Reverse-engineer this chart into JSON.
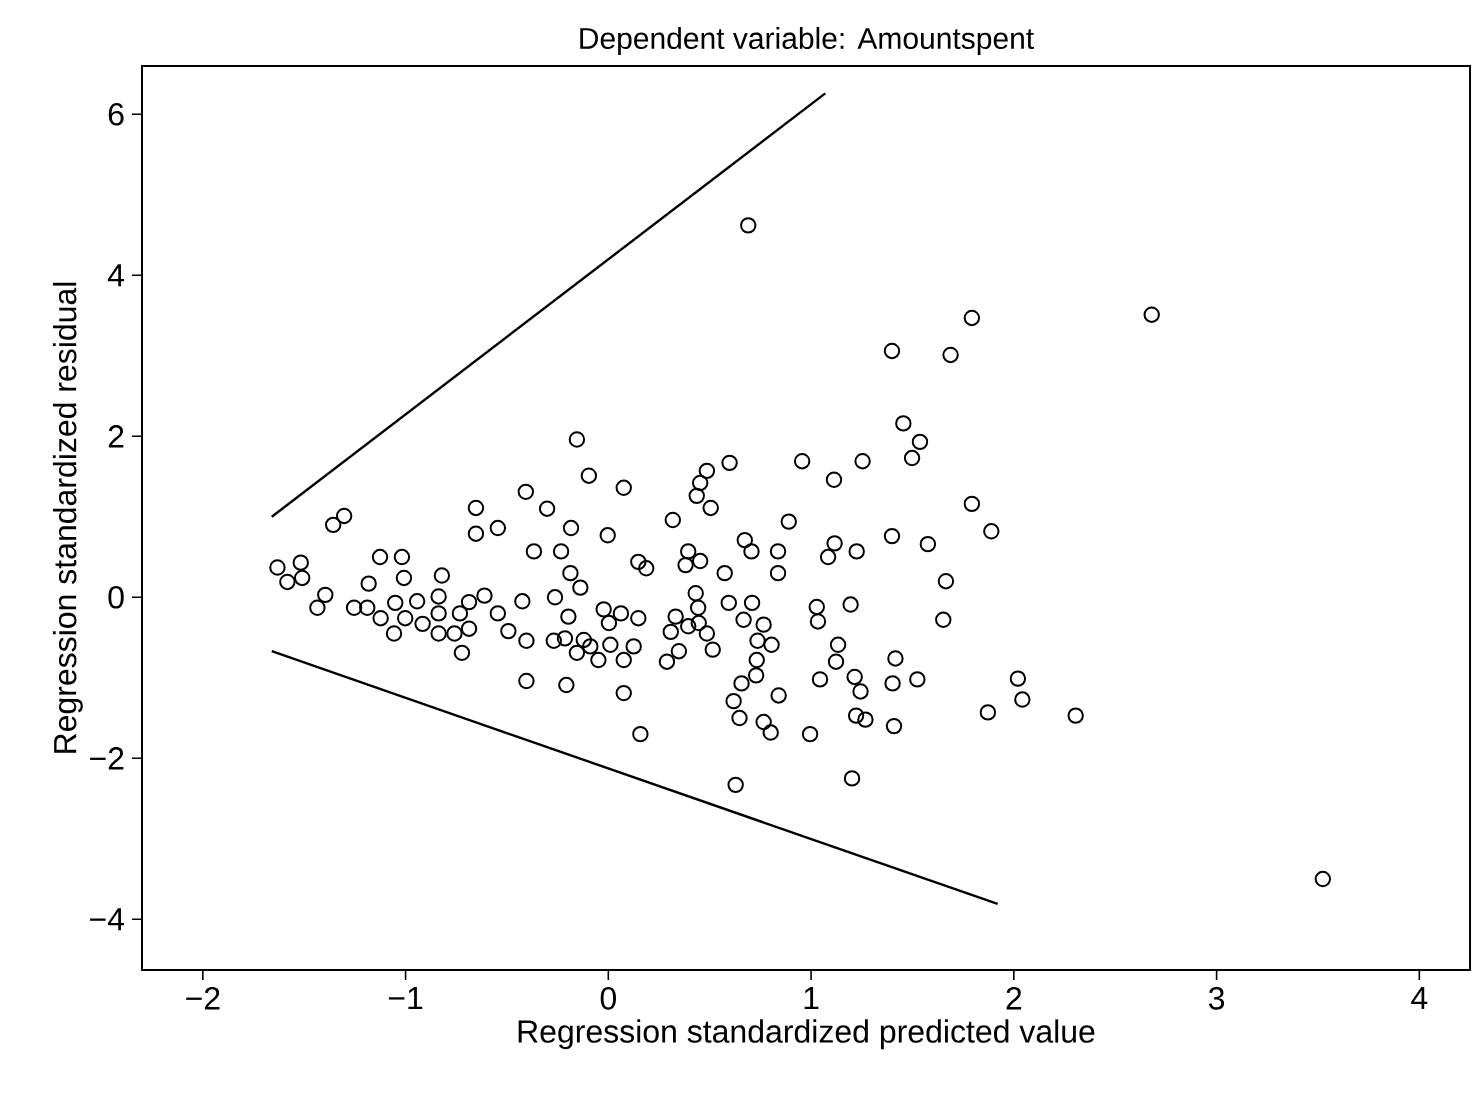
{
  "chart_data": {
    "type": "scatter",
    "title": "Dependent variable: Amountspent",
    "xlabel": "Regression standardized predicted value",
    "ylabel": "Regression standardized residual",
    "xlim": [
      -2.3,
      4.25
    ],
    "ylim": [
      -4.63,
      6.6
    ],
    "xticks": [
      {
        "value": -2,
        "label": "−2"
      },
      {
        "value": -1,
        "label": "−1"
      },
      0,
      1,
      2,
      3,
      4
    ],
    "yticks": [
      {
        "value": -4,
        "label": "−4"
      },
      {
        "value": -2,
        "label": "−2"
      },
      0,
      2,
      4,
      6
    ],
    "series": [
      {
        "color": "#000000",
        "marker": "circle",
        "x": [
          -0.155,
          -0.096,
          0.076,
          -0.407,
          -0.653,
          -0.302,
          -1.303,
          -1.357,
          -0.653,
          -0.545,
          -0.184,
          -0.003,
          -0.367,
          -0.233,
          -1.632,
          -1.517,
          -1.583,
          -1.51,
          -1.126,
          -1.018,
          -1.396,
          -1.435,
          -1.182,
          -1.008,
          -0.821,
          -1.254,
          -1.189,
          -1.123,
          -1.051,
          -1.002,
          -1.057,
          -0.943,
          -0.916,
          -0.837,
          -0.837,
          -0.837,
          -0.759,
          -0.722,
          -0.732,
          -0.687,
          -0.687,
          -0.611,
          -0.545,
          -0.493,
          -0.424,
          -0.404,
          -0.404,
          -0.207,
          -0.263,
          -0.187,
          -0.138,
          -0.197,
          -0.269,
          -0.214,
          -0.155,
          -0.121,
          -0.089,
          -0.049,
          -0.023,
          0.003,
          0.01,
          0.062,
          0.076,
          0.076,
          0.69,
          1.793,
          1.399,
          1.688,
          1.455,
          1.537,
          1.498,
          0.486,
          0.453,
          0.436,
          0.505,
          0.598,
          0.956,
          1.113,
          1.254,
          0.318,
          1.793,
          1.889,
          0.89,
          0.673,
          0.706,
          0.837,
          1.116,
          1.084,
          1.225,
          1.399,
          1.576,
          1.665,
          0.148,
          0.187,
          0.394,
          0.381,
          0.453,
          0.574,
          0.837,
          0.431,
          0.594,
          0.709,
          1.028,
          1.195,
          1.652,
          1.034,
          0.148,
          0.125,
          0.158,
          0.308,
          0.332,
          0.394,
          0.443,
          0.446,
          0.486,
          0.515,
          0.348,
          0.289,
          0.667,
          0.766,
          0.736,
          0.805,
          0.732,
          0.729,
          0.657,
          0.618,
          0.647,
          0.766,
          0.801,
          0.84,
          0.995,
          1.044,
          1.133,
          1.123,
          1.215,
          1.244,
          1.222,
          1.268,
          1.416,
          1.402,
          1.524,
          1.409,
          0.628,
          1.202,
          1.872,
          2.02,
          2.042,
          2.68,
          2.305,
          3.524
        ],
        "values": [
          1.96,
          1.51,
          1.36,
          1.31,
          1.11,
          1.1,
          1.01,
          0.9,
          0.79,
          0.86,
          0.86,
          0.77,
          0.57,
          0.57,
          0.37,
          0.43,
          0.19,
          0.24,
          0.5,
          0.5,
          0.03,
          -0.13,
          0.17,
          0.24,
          0.27,
          -0.13,
          -0.13,
          -0.26,
          -0.07,
          -0.26,
          -0.45,
          -0.05,
          -0.33,
          0.01,
          -0.2,
          -0.45,
          -0.45,
          -0.69,
          -0.2,
          -0.06,
          -0.39,
          0.02,
          -0.2,
          -0.42,
          -0.05,
          -0.54,
          -1.04,
          -1.09,
          0.0,
          0.3,
          0.12,
          -0.24,
          -0.54,
          -0.51,
          -0.69,
          -0.53,
          -0.61,
          -0.78,
          -0.15,
          -0.32,
          -0.59,
          -0.2,
          -0.78,
          -1.19,
          4.62,
          3.47,
          3.06,
          3.01,
          2.16,
          1.93,
          1.73,
          1.57,
          1.42,
          1.26,
          1.11,
          1.67,
          1.69,
          1.46,
          1.69,
          0.96,
          1.16,
          0.82,
          0.94,
          0.71,
          0.57,
          0.57,
          0.67,
          0.5,
          0.57,
          0.76,
          0.66,
          0.2,
          0.44,
          0.36,
          0.57,
          0.4,
          0.45,
          0.3,
          0.3,
          0.05,
          -0.07,
          -0.07,
          -0.12,
          -0.09,
          -0.28,
          -0.3,
          -0.26,
          -0.61,
          -1.7,
          -0.43,
          -0.24,
          -0.36,
          -0.13,
          -0.32,
          -0.45,
          -0.65,
          -0.67,
          -0.8,
          -0.28,
          -0.34,
          -0.54,
          -0.59,
          -0.78,
          -0.97,
          -1.07,
          -1.29,
          -1.5,
          -1.55,
          -1.68,
          -1.22,
          -1.7,
          -1.02,
          -0.59,
          -0.8,
          -0.99,
          -1.17,
          -1.47,
          -1.52,
          -0.76,
          -1.07,
          -1.02,
          -1.6,
          -2.33,
          -2.25,
          -1.43,
          -1.01,
          -1.27,
          3.51,
          -1.47,
          -3.5
        ]
      },
      {
        "type": "line",
        "color": "#000000",
        "marker": "none",
        "line_style": "solid",
        "x": [
          -1.66,
          1.07
        ],
        "values": [
          1.0,
          6.26
        ]
      },
      {
        "type": "line",
        "color": "#000000",
        "marker": "none",
        "line_style": "solid",
        "x": [
          -1.66,
          1.92
        ],
        "values": [
          -0.67,
          -3.81
        ]
      }
    ]
  }
}
